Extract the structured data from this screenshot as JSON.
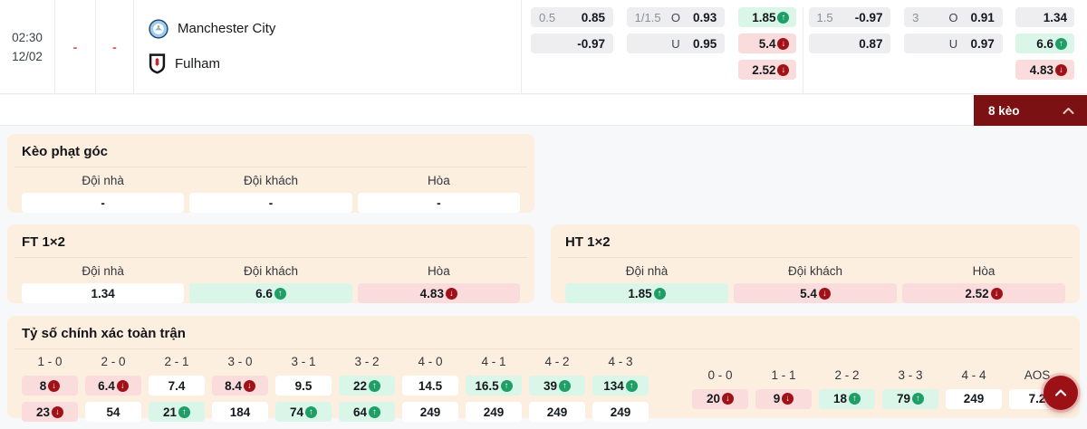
{
  "match": {
    "time": "02:30",
    "date": "12/02",
    "home_score": "-",
    "away_score": "-",
    "home_team": "Manchester City",
    "away_team": "Fulham"
  },
  "top_odds": {
    "groups": [
      {
        "handicap_rows": [
          {
            "hcap": "0.5",
            "value": "0.85"
          },
          {
            "hcap": "",
            "value": "-0.97"
          }
        ],
        "ou_rows": [
          {
            "hcap": "1/1.5",
            "side": "O",
            "value": "0.93"
          },
          {
            "hcap": "",
            "side": "U",
            "value": "0.95"
          }
        ],
        "x12_rows": [
          {
            "value": "1.85",
            "trend": "up",
            "bg": "green"
          },
          {
            "value": "5.4",
            "trend": "down",
            "bg": "red"
          },
          {
            "value": "2.52",
            "trend": "down",
            "bg": "red"
          }
        ]
      },
      {
        "handicap_rows": [
          {
            "hcap": "1.5",
            "value": "-0.97"
          },
          {
            "hcap": "",
            "value": "0.87"
          }
        ],
        "ou_rows": [
          {
            "hcap": "3",
            "side": "O",
            "value": "0.91"
          },
          {
            "hcap": "",
            "side": "U",
            "value": "0.97"
          }
        ],
        "x12_rows": [
          {
            "value": "1.34",
            "trend": null,
            "bg": "gray"
          },
          {
            "value": "6.6",
            "trend": "up",
            "bg": "green"
          },
          {
            "value": "4.83",
            "trend": "down",
            "bg": "red"
          }
        ]
      }
    ]
  },
  "keo_bar": {
    "label": "8 kèo"
  },
  "panels": {
    "corner": {
      "title": "Kèo phạt góc",
      "headers": [
        "Đội nhà",
        "Đội khách",
        "Hòa"
      ],
      "values": [
        {
          "value": "-",
          "trend": null,
          "bg": "white"
        },
        {
          "value": "-",
          "trend": null,
          "bg": "white"
        },
        {
          "value": "-",
          "trend": null,
          "bg": "white"
        }
      ]
    },
    "ft": {
      "title": "FT 1×2",
      "headers": [
        "Đội nhà",
        "Đội khách",
        "Hòa"
      ],
      "values": [
        {
          "value": "1.34",
          "trend": null,
          "bg": "white"
        },
        {
          "value": "6.6",
          "trend": "up",
          "bg": "green"
        },
        {
          "value": "4.83",
          "trend": "down",
          "bg": "red"
        }
      ]
    },
    "ht": {
      "title": "HT 1×2",
      "headers": [
        "Đội nhà",
        "Đội khách",
        "Hòa"
      ],
      "values": [
        {
          "value": "1.85",
          "trend": "up",
          "bg": "green"
        },
        {
          "value": "5.4",
          "trend": "down",
          "bg": "red"
        },
        {
          "value": "2.52",
          "trend": "down",
          "bg": "red"
        }
      ]
    },
    "correct_score": {
      "title": "Tỷ số chính xác toàn trận",
      "main_columns": [
        {
          "label": "1 - 0",
          "cells": [
            {
              "value": "8",
              "trend": "down",
              "bg": "red"
            },
            {
              "value": "23",
              "trend": "down",
              "bg": "red"
            }
          ]
        },
        {
          "label": "2 - 0",
          "cells": [
            {
              "value": "6.4",
              "trend": "down",
              "bg": "red"
            },
            {
              "value": "54",
              "trend": null,
              "bg": "white"
            }
          ]
        },
        {
          "label": "2 - 1",
          "cells": [
            {
              "value": "7.4",
              "trend": null,
              "bg": "white"
            },
            {
              "value": "21",
              "trend": "up",
              "bg": "green"
            }
          ]
        },
        {
          "label": "3 - 0",
          "cells": [
            {
              "value": "8.4",
              "trend": "down",
              "bg": "red"
            },
            {
              "value": "184",
              "trend": null,
              "bg": "white"
            }
          ]
        },
        {
          "label": "3 - 1",
          "cells": [
            {
              "value": "9.5",
              "trend": null,
              "bg": "white"
            },
            {
              "value": "74",
              "trend": "up",
              "bg": "green"
            }
          ]
        },
        {
          "label": "3 - 2",
          "cells": [
            {
              "value": "22",
              "trend": "up",
              "bg": "green"
            },
            {
              "value": "64",
              "trend": "up",
              "bg": "green"
            }
          ]
        },
        {
          "label": "4 - 0",
          "cells": [
            {
              "value": "14.5",
              "trend": null,
              "bg": "white"
            },
            {
              "value": "249",
              "trend": null,
              "bg": "white"
            }
          ]
        },
        {
          "label": "4 - 1",
          "cells": [
            {
              "value": "16.5",
              "trend": "up",
              "bg": "green"
            },
            {
              "value": "249",
              "trend": null,
              "bg": "white"
            }
          ]
        },
        {
          "label": "4 - 2",
          "cells": [
            {
              "value": "39",
              "trend": "up",
              "bg": "green"
            },
            {
              "value": "249",
              "trend": null,
              "bg": "white"
            }
          ]
        },
        {
          "label": "4 - 3",
          "cells": [
            {
              "value": "134",
              "trend": "up",
              "bg": "green"
            },
            {
              "value": "249",
              "trend": null,
              "bg": "white"
            }
          ]
        }
      ],
      "draw_columns": [
        {
          "label": "0 - 0",
          "cells": [
            {
              "value": "20",
              "trend": "down",
              "bg": "red"
            }
          ]
        },
        {
          "label": "1 - 1",
          "cells": [
            {
              "value": "9",
              "trend": "down",
              "bg": "red"
            }
          ]
        },
        {
          "label": "2 - 2",
          "cells": [
            {
              "value": "18",
              "trend": "up",
              "bg": "green"
            }
          ]
        },
        {
          "label": "3 - 3",
          "cells": [
            {
              "value": "79",
              "trend": "up",
              "bg": "green"
            }
          ]
        },
        {
          "label": "4 - 4",
          "cells": [
            {
              "value": "249",
              "trend": null,
              "bg": "white"
            }
          ]
        },
        {
          "label": "AOS",
          "cells": [
            {
              "value": "7.2",
              "trend": null,
              "bg": "white"
            }
          ]
        }
      ]
    }
  },
  "colors": {
    "accent_maroon": "#7b1113",
    "trend_up_green": "#1f9e66",
    "trend_down_red": "#a11218",
    "cell_green_bg": "#d9f6e8",
    "cell_red_bg": "#fbdcdd",
    "panel_peach_bg": "#fcefe0"
  }
}
